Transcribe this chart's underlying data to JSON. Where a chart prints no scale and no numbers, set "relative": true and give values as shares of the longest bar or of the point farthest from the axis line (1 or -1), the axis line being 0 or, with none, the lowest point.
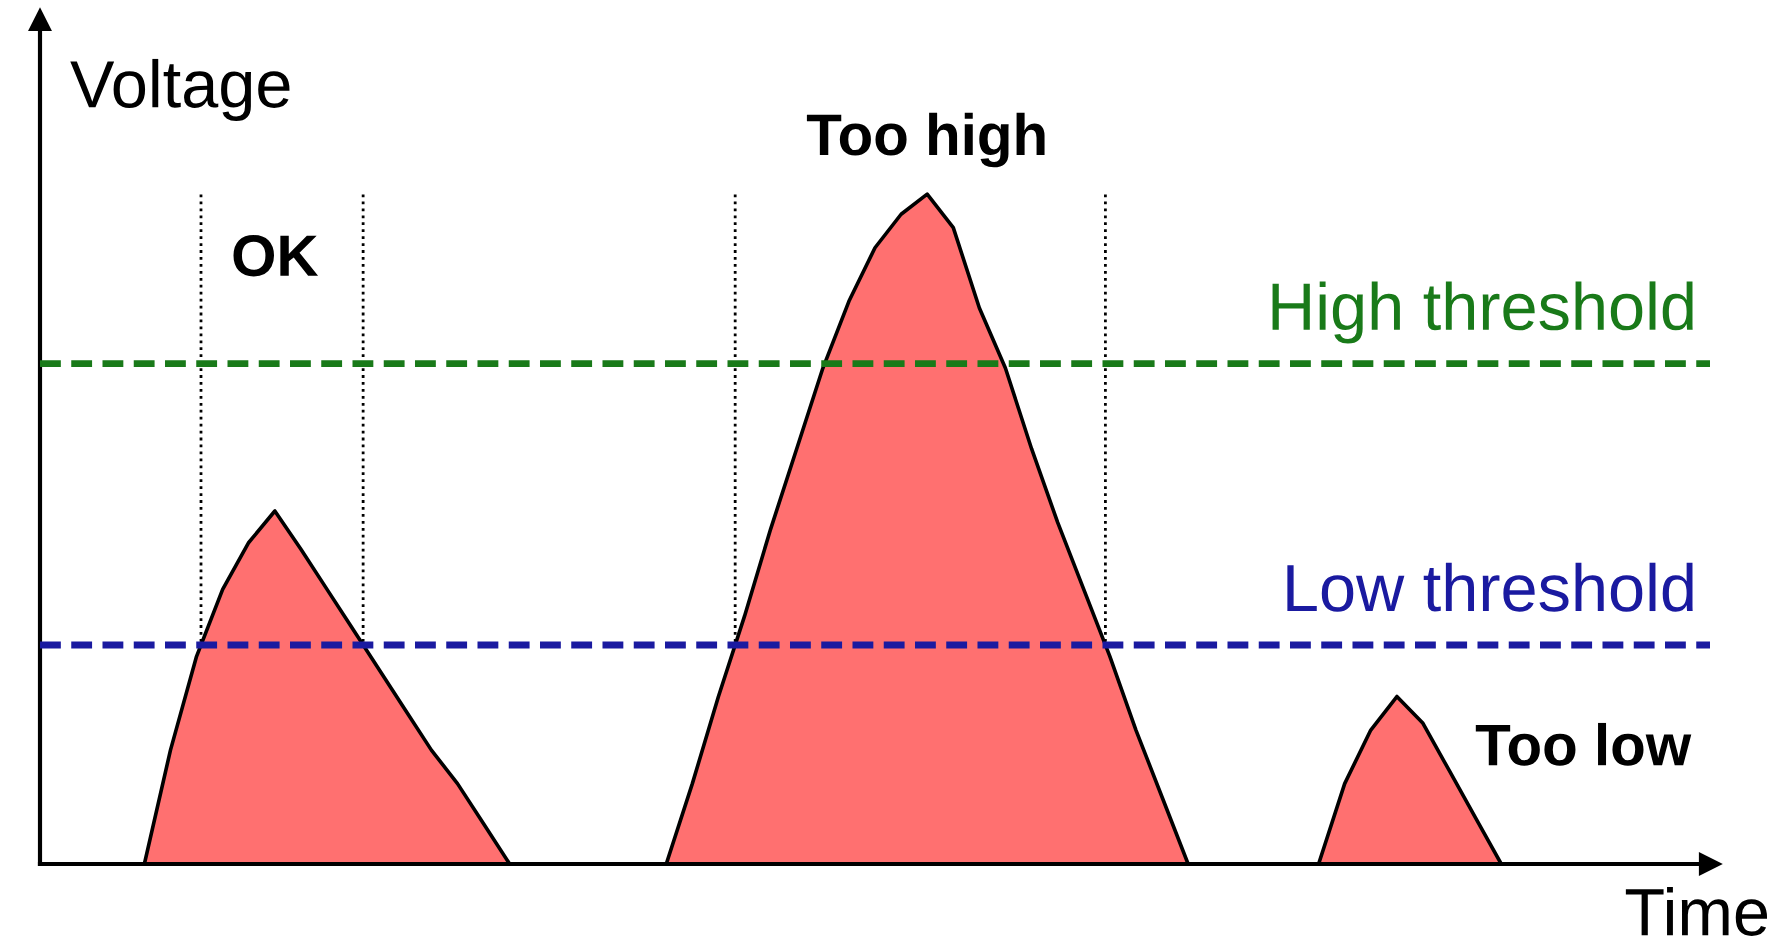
{
  "chart_data": {
    "type": "area",
    "relative": true,
    "xlabel": "Time",
    "ylabel": "Voltage",
    "categories": [
      null,
      null,
      null,
      null,
      null,
      null,
      null,
      null,
      null,
      null,
      null,
      null,
      null,
      null,
      null,
      null,
      null,
      null,
      null,
      null,
      null,
      null,
      null,
      null,
      null,
      null,
      null,
      null,
      null,
      null,
      null,
      null,
      null,
      null,
      null,
      null,
      null,
      null,
      null,
      null,
      null,
      null,
      null,
      null,
      null,
      null,
      null,
      null,
      null,
      null,
      null,
      null,
      null,
      null,
      null,
      null,
      null,
      null,
      null,
      null,
      null,
      null,
      null,
      null,
      null
    ],
    "series": [
      {
        "color": "#ff7070",
        "values": [
          null,
          null,
          null,
          null,
          0,
          0.17,
          0.31,
          0.41,
          0.48,
          0.527,
          0.47,
          0.41,
          0.35,
          0.29,
          0.23,
          0.17,
          0.12,
          0.06,
          0,
          null,
          null,
          null,
          null,
          null,
          null,
          null,
          null,
          null,
          null,
          null,
          null,
          null,
          null,
          null,
          null,
          null,
          null,
          null,
          null,
          null,
          null,
          null,
          null,
          null,
          null,
          null,
          null,
          null,
          null,
          null,
          null,
          null,
          null,
          null,
          null,
          null,
          null,
          null,
          null,
          null,
          null,
          null,
          null,
          null,
          null
        ]
      },
      {
        "color": "#ff7070",
        "values": [
          null,
          null,
          null,
          null,
          null,
          null,
          null,
          null,
          null,
          null,
          null,
          null,
          null,
          null,
          null,
          null,
          null,
          null,
          null,
          null,
          null,
          null,
          null,
          null,
          0,
          0.12,
          0.25,
          0.37,
          0.5,
          0.62,
          0.74,
          0.84,
          0.92,
          0.97,
          1,
          0.95,
          0.83,
          0.74,
          0.62,
          0.51,
          0.41,
          0.31,
          0.2,
          0.1,
          0,
          null,
          null,
          null,
          null,
          null,
          null,
          null,
          null,
          null,
          null,
          null,
          null,
          null,
          null,
          null,
          null,
          null,
          null,
          null,
          null
        ]
      },
      {
        "color": "#ff7070",
        "values": [
          null,
          null,
          null,
          null,
          null,
          null,
          null,
          null,
          null,
          null,
          null,
          null,
          null,
          null,
          null,
          null,
          null,
          null,
          null,
          null,
          null,
          null,
          null,
          null,
          null,
          null,
          null,
          null,
          null,
          null,
          null,
          null,
          null,
          null,
          null,
          null,
          null,
          null,
          null,
          null,
          null,
          null,
          null,
          null,
          null,
          null,
          null,
          null,
          null,
          0,
          0.12,
          0.2,
          0.25,
          0.21,
          0.14,
          0.07,
          0,
          null,
          null,
          null,
          null,
          null,
          null,
          null,
          null
        ]
      }
    ],
    "ref_lines": [
      {
        "axis": "y",
        "value": 0.747,
        "label": "High threshold",
        "color": "#197a19",
        "line_style": "dashed"
      },
      {
        "axis": "y",
        "value": 0.327,
        "label": "Low threshold",
        "color": "#1a1aa0",
        "line_style": "dashed"
      }
    ],
    "annotations": [
      "OK",
      "Too high",
      "Too low"
    ]
  }
}
